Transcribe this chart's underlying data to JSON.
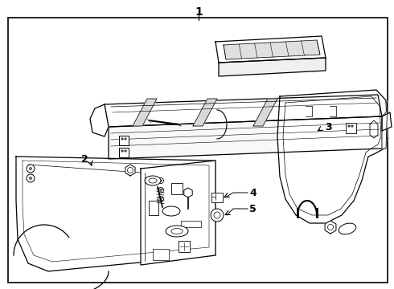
{
  "bg_color": "#ffffff",
  "line_color": "#000000",
  "label_1": "1",
  "label_2": "2",
  "label_3": "3",
  "label_4": "4",
  "label_5": "5",
  "label_fontsize": 9,
  "fig_width": 4.9,
  "fig_height": 3.6,
  "dpi": 100
}
